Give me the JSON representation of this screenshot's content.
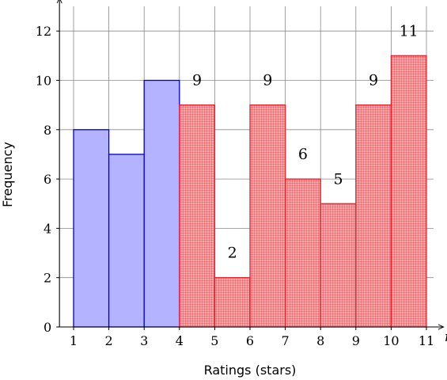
{
  "chart_data": {
    "type": "bar",
    "xlabel": "Ratings (stars)",
    "ylabel": "Frequency",
    "x_axis_var": "r",
    "xlim": [
      0.6,
      11.2
    ],
    "ylim": [
      0,
      13
    ],
    "xticks": [
      1,
      2,
      3,
      4,
      5,
      6,
      7,
      8,
      9,
      10,
      11
    ],
    "yticks": [
      0,
      2,
      4,
      6,
      8,
      10,
      12
    ],
    "grid": true,
    "bin_edges": [
      1,
      2,
      3,
      4,
      5,
      6,
      7,
      8,
      9,
      10,
      11
    ],
    "values": [
      8,
      7,
      10,
      9,
      2,
      9,
      6,
      5,
      9,
      11
    ],
    "data_labels": [
      "",
      "",
      "",
      "9",
      "2",
      "9",
      "6",
      "5",
      "9",
      "11"
    ],
    "colors": {
      "blue_fill": "#b3b3ff",
      "blue_stroke": "#0000cc",
      "red_fill": "#f4888c",
      "red_stroke": "#e8202a",
      "red_pattern": "#e8414a",
      "grid": "#8a8a8a"
    }
  }
}
